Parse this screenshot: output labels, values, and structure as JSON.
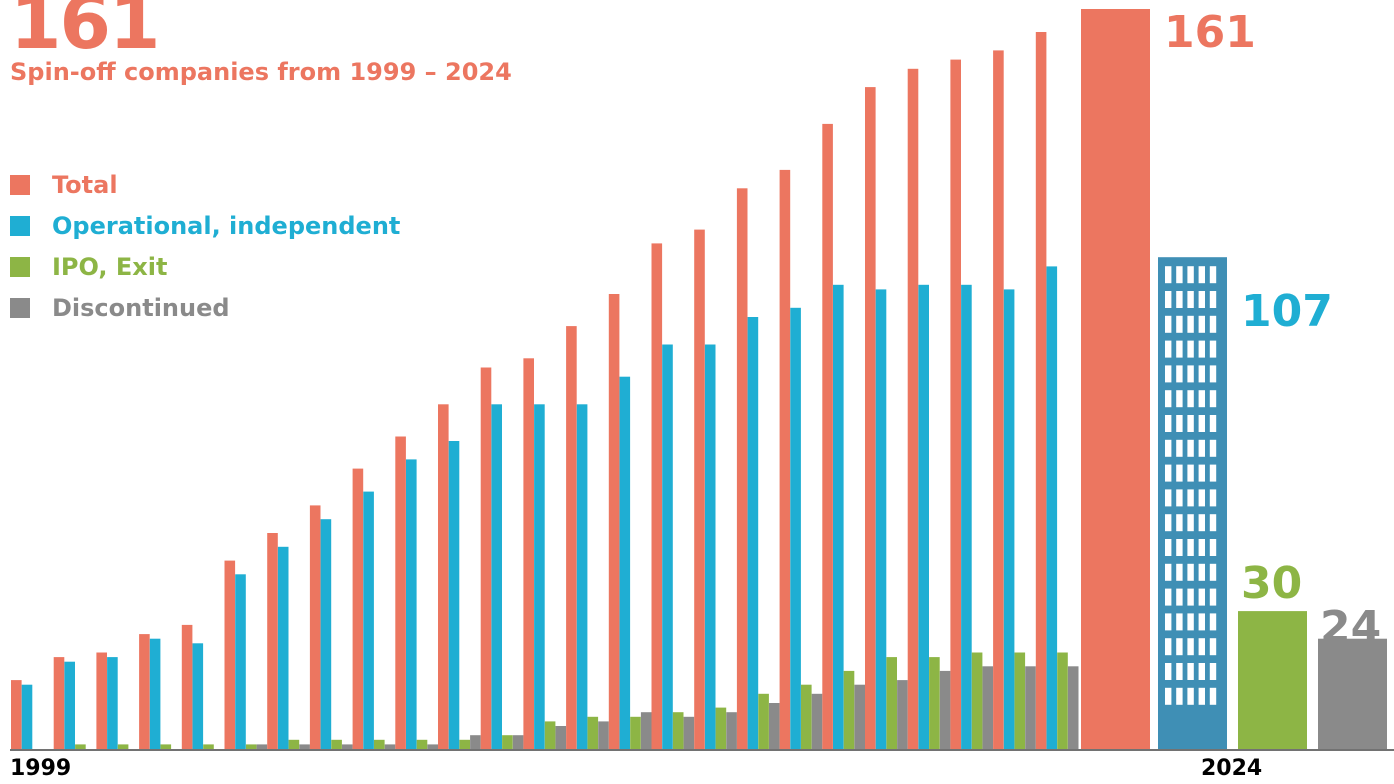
{
  "header": {
    "big_number": "161",
    "subtitle": "Spin-off companies from 1999 – 2024"
  },
  "legend": [
    {
      "label": "Total",
      "color": "#ec7660"
    },
    {
      "label": "Operational, independent",
      "color": "#1faed3"
    },
    {
      "label": "IPO, Exit",
      "color": "#8db545"
    },
    {
      "label": "Discontinued",
      "color": "#8a8a8a"
    }
  ],
  "axis": {
    "start_label": "1999",
    "end_label": "2024"
  },
  "chart_data": {
    "type": "bar",
    "title": "Spin-off companies from 1999 – 2024",
    "xlabel": "",
    "ylabel": "",
    "x_tick_labels": [
      "1999",
      "2024"
    ],
    "ylim": [
      0,
      161
    ],
    "grid": false,
    "legend_position": "top-left",
    "series": [
      {
        "name": "Total",
        "color": "#ec7660",
        "values": [
          15,
          20,
          21,
          25,
          27,
          41,
          47,
          53,
          61,
          68,
          75,
          83,
          85,
          92,
          99,
          110,
          113,
          122,
          126,
          136,
          144,
          148,
          150,
          152,
          156,
          161
        ]
      },
      {
        "name": "Operational, independent",
        "color": "#1faed3",
        "values": [
          14,
          19,
          20,
          24,
          23,
          38,
          44,
          50,
          56,
          63,
          67,
          75,
          75,
          75,
          81,
          88,
          88,
          94,
          96,
          101,
          100,
          101,
          101,
          100,
          105,
          107
        ]
      },
      {
        "name": "IPO, Exit",
        "color": "#8db545",
        "values": [
          0,
          1,
          1,
          1,
          1,
          1,
          2,
          2,
          2,
          2,
          2,
          3,
          6,
          7,
          7,
          8,
          9,
          12,
          14,
          17,
          20,
          20,
          21,
          21,
          21,
          30
        ]
      },
      {
        "name": "Discontinued",
        "color": "#8a8a8a",
        "values": [
          0,
          0,
          0,
          0,
          0,
          1,
          1,
          1,
          1,
          1,
          3,
          3,
          5,
          6,
          8,
          7,
          8,
          10,
          12,
          14,
          15,
          17,
          18,
          18,
          18,
          24
        ]
      }
    ],
    "final_values": {
      "Total": "161",
      "Operational, independent": "107",
      "IPO, Exit": "30",
      "Discontinued": "24"
    },
    "building_color": "#3f8fb5",
    "window_color": "#ffffff"
  }
}
